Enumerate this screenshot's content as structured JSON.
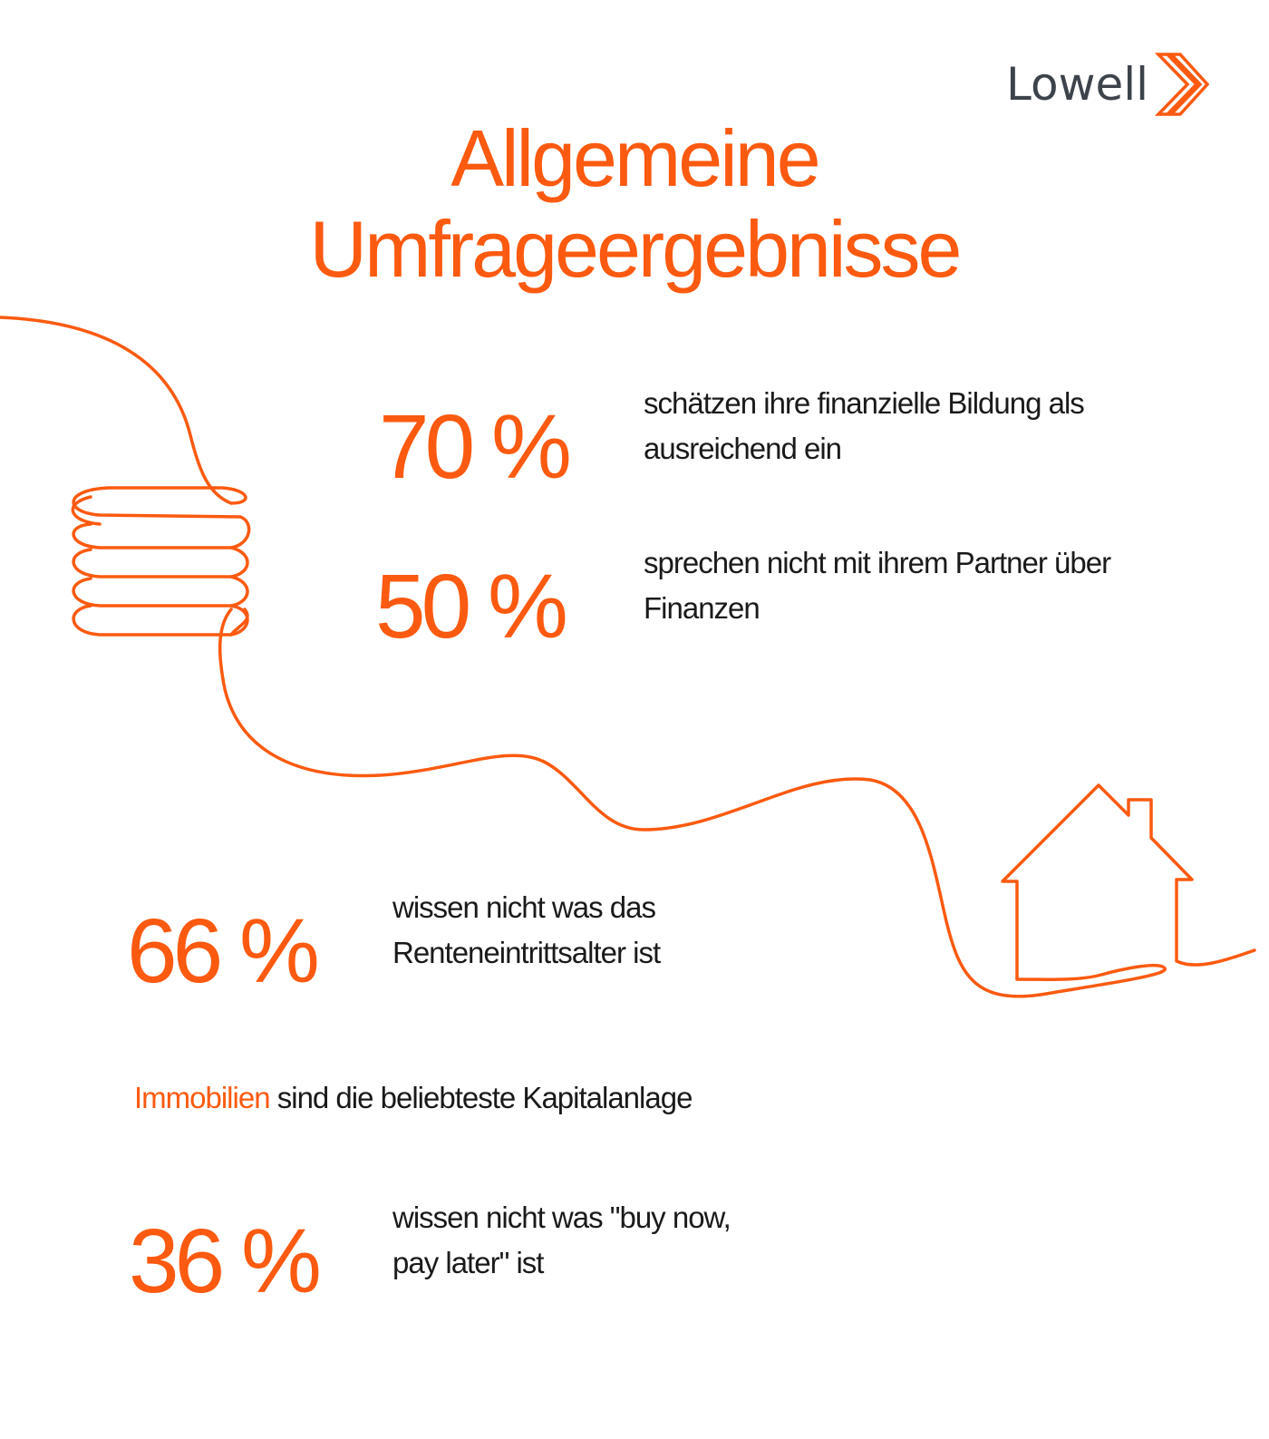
{
  "brand": {
    "name": "Lowell",
    "accent_color": "#fb5a10",
    "text_color": "#3d434b",
    "icon": "double-chevron-right-icon"
  },
  "title": {
    "line1": "Allgemeine",
    "line2": "Umfrageergebnisse"
  },
  "illustrations": [
    "coin-stack-icon",
    "house-icon"
  ],
  "stats": [
    {
      "percent": "70 %",
      "text_line1": "schätzen ihre finanzielle Bildung als",
      "text_line2": "ausreichend ein"
    },
    {
      "percent": "50 %",
      "text_line1": "sprechen nicht mit ihrem Partner über",
      "text_line2": "Finanzen"
    },
    {
      "percent": "66 %",
      "text_line1": "wissen nicht was das",
      "text_line2": "Renteneintrittsalter ist"
    },
    {
      "percent": "36 %",
      "text_line1": "wissen nicht was \"buy now,",
      "text_line2": "pay later\" ist"
    }
  ],
  "highlight_sentence": {
    "highlight": "Immobilien",
    "rest": " sind die beliebteste Kapitalanlage"
  }
}
